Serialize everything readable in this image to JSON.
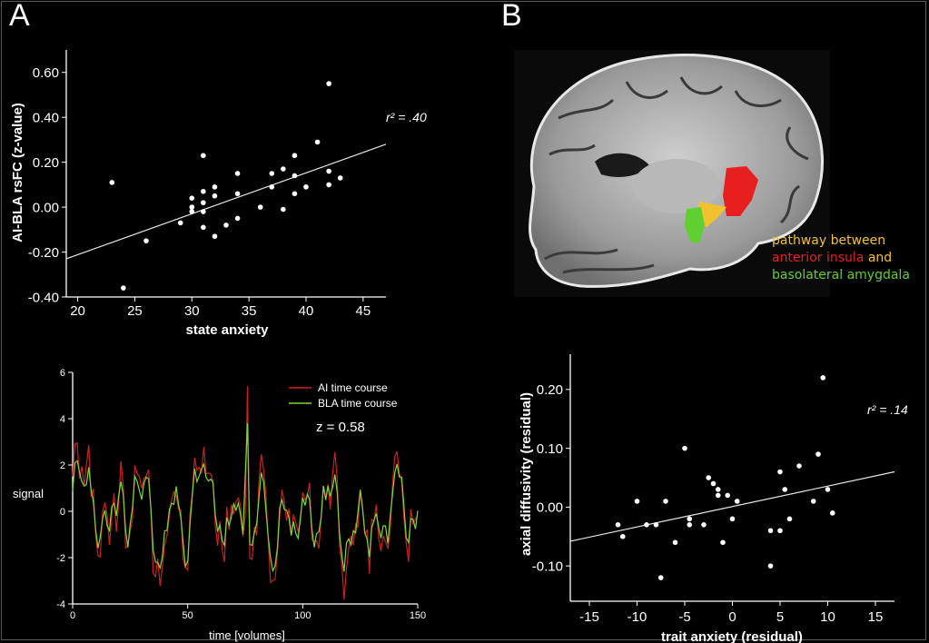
{
  "panels": {
    "a_label": "A",
    "b_label": "B"
  },
  "colors": {
    "background": "#000000",
    "points": "#ffffff",
    "ai_series": "#cc2020",
    "bla_series": "#7ed63a",
    "pathway": "#f2c12e",
    "insula": "#e81f1f",
    "amygdala": "#5fcf32"
  },
  "brain_legend": {
    "line1": "pathway between",
    "line2_part1": "anterior insula",
    "line2_part2": "and",
    "line3": "basolateral amygdala"
  },
  "chart_data": [
    {
      "id": "scatter-state",
      "type": "scatter",
      "xlabel": "state anxiety",
      "ylabel": "AI-BLA rsFC (z-value)",
      "xlim": [
        19,
        47
      ],
      "ylim": [
        -0.4,
        0.7
      ],
      "xticks": [
        20,
        25,
        30,
        35,
        40,
        45
      ],
      "yticks": [
        -0.4,
        -0.2,
        0.0,
        0.2,
        0.4,
        0.6
      ],
      "ytick_labels": [
        "-0.40",
        "-0.20",
        "0.00",
        "0.20",
        "0.40",
        "0.60"
      ],
      "annotation": "r² = .40",
      "trend": {
        "x": [
          19,
          47
        ],
        "y": [
          -0.23,
          0.28
        ]
      },
      "points": {
        "x": [
          23,
          24,
          26,
          29,
          30,
          30,
          30,
          31,
          31,
          31,
          31,
          31,
          32,
          32,
          32,
          33,
          34,
          34,
          34,
          36,
          37,
          37,
          38,
          38,
          39,
          39,
          39,
          40,
          41,
          42,
          42,
          42,
          43
        ],
        "y": [
          0.11,
          -0.36,
          -0.15,
          -0.07,
          0.04,
          0.0,
          -0.02,
          0.23,
          0.07,
          0.02,
          -0.02,
          -0.09,
          0.09,
          0.05,
          -0.13,
          -0.08,
          0.15,
          0.06,
          -0.05,
          0.0,
          0.15,
          0.09,
          0.17,
          -0.01,
          0.23,
          0.14,
          0.06,
          0.09,
          0.29,
          0.55,
          0.16,
          0.1,
          0.13
        ]
      }
    },
    {
      "id": "timecourse",
      "type": "line",
      "xlabel": "time [volumes]",
      "ylabel": "signal",
      "xlim": [
        0,
        150
      ],
      "ylim": [
        -4,
        6
      ],
      "xticks": [
        0,
        50,
        100,
        150
      ],
      "yticks": [
        -4,
        -2,
        0,
        2,
        4,
        6
      ],
      "annotation": "z = 0.58",
      "series": [
        {
          "name": "AI time course",
          "color": "#cc2020"
        },
        {
          "name": "BLA time course",
          "color": "#7ed63a"
        }
      ]
    },
    {
      "id": "scatter-trait",
      "type": "scatter",
      "xlabel": "trait anxiety (residual)",
      "ylabel": "axial diffusivity (residual)",
      "xlim": [
        -17,
        17
      ],
      "ylim": [
        -0.16,
        0.26
      ],
      "xticks": [
        -15,
        -10,
        -5,
        0,
        5,
        10,
        15
      ],
      "yticks": [
        -0.1,
        0.0,
        0.1,
        0.2
      ],
      "ytick_labels": [
        "-0.10",
        "0.00",
        "0.10",
        "0.20"
      ],
      "annotation": "r² = .14",
      "trend": {
        "x": [
          -17,
          17
        ],
        "y": [
          -0.058,
          0.06
        ]
      },
      "points": {
        "x": [
          -12,
          -11.5,
          -10,
          -9,
          -8,
          -7.5,
          -7,
          -6,
          -5,
          -4.5,
          -4.5,
          -3,
          -2.5,
          -2,
          -1.5,
          -1.5,
          -1,
          -0.5,
          0,
          0.5,
          4,
          4,
          5,
          5,
          5.5,
          6,
          7,
          8.5,
          9,
          9.5,
          10,
          10.5
        ],
        "y": [
          -0.03,
          -0.05,
          0.01,
          -0.03,
          -0.03,
          -0.12,
          0.01,
          -0.06,
          0.1,
          -0.03,
          -0.02,
          -0.03,
          0.05,
          0.04,
          0.03,
          0.02,
          -0.06,
          0.02,
          -0.02,
          0.01,
          -0.04,
          -0.1,
          0.06,
          -0.04,
          0.03,
          -0.02,
          0.07,
          0.01,
          0.09,
          0.22,
          0.03,
          -0.01
        ]
      }
    }
  ]
}
